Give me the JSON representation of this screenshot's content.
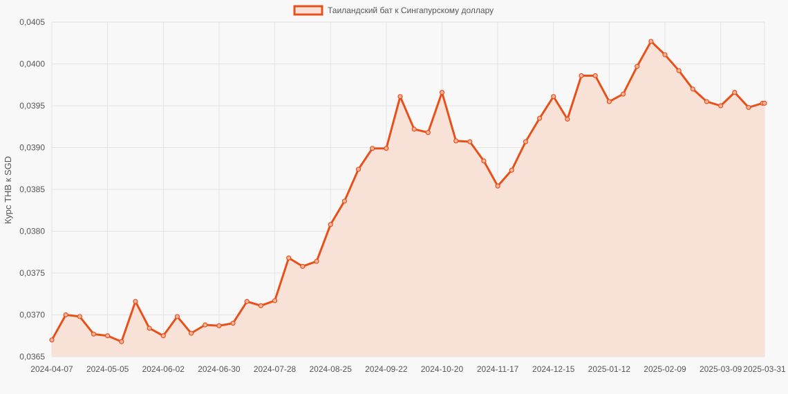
{
  "chart_data": {
    "type": "area",
    "title": "",
    "xlabel": "",
    "ylabel": "Курс THB к SGD",
    "legend": "top-center",
    "grid": true,
    "colors": {
      "line": "#e8501a",
      "fill": "#f8e1d7",
      "grid": "#e2e2e2"
    },
    "x_tick_labels": [
      "2024-04-07",
      "2024-05-05",
      "2024-06-02",
      "2024-06-30",
      "2024-07-28",
      "2024-08-25",
      "2024-09-22",
      "2024-10-20",
      "2024-11-17",
      "2024-12-15",
      "2025-01-12",
      "2025-02-09",
      "2025-03-09",
      "2025-03-31"
    ],
    "y_tick_labels": [
      "0,0365",
      "0,0370",
      "0,0375",
      "0,0380",
      "0,0385",
      "0,0390",
      "0,0395",
      "0,0400",
      "0,0405"
    ],
    "ylim": [
      0.0365,
      0.0405
    ],
    "series": [
      {
        "name": "Таиландский бат к Сингапурскому доллару",
        "x": [
          "2024-04-07",
          "2024-04-14",
          "2024-04-21",
          "2024-04-28",
          "2024-05-05",
          "2024-05-12",
          "2024-05-19",
          "2024-05-26",
          "2024-06-02",
          "2024-06-09",
          "2024-06-16",
          "2024-06-23",
          "2024-06-30",
          "2024-07-07",
          "2024-07-14",
          "2024-07-21",
          "2024-07-28",
          "2024-08-04",
          "2024-08-11",
          "2024-08-18",
          "2024-08-25",
          "2024-09-01",
          "2024-09-08",
          "2024-09-15",
          "2024-09-22",
          "2024-09-29",
          "2024-10-06",
          "2024-10-13",
          "2024-10-20",
          "2024-10-27",
          "2024-11-03",
          "2024-11-10",
          "2024-11-17",
          "2024-11-24",
          "2024-12-01",
          "2024-12-08",
          "2024-12-15",
          "2024-12-22",
          "2024-12-29",
          "2025-01-05",
          "2025-01-12",
          "2025-01-19",
          "2025-01-26",
          "2025-02-02",
          "2025-02-09",
          "2025-02-16",
          "2025-02-23",
          "2025-03-02",
          "2025-03-09",
          "2025-03-16",
          "2025-03-23",
          "2025-03-30",
          "2025-03-31"
        ],
        "values": [
          0.0367,
          0.037,
          0.03698,
          0.03677,
          0.03675,
          0.03668,
          0.03716,
          0.03684,
          0.03675,
          0.03698,
          0.03678,
          0.03688,
          0.03687,
          0.0369,
          0.03716,
          0.03711,
          0.03717,
          0.03768,
          0.03758,
          0.03764,
          0.03808,
          0.03836,
          0.03874,
          0.03899,
          0.03899,
          0.03961,
          0.03922,
          0.03918,
          0.03966,
          0.03908,
          0.03907,
          0.03884,
          0.03854,
          0.03873,
          0.03907,
          0.03935,
          0.03961,
          0.03934,
          0.03986,
          0.03986,
          0.03955,
          0.03964,
          0.03997,
          0.04027,
          0.04011,
          0.03992,
          0.0397,
          0.03955,
          0.0395,
          0.03966,
          0.03948,
          0.03953,
          0.03953
        ]
      }
    ]
  }
}
